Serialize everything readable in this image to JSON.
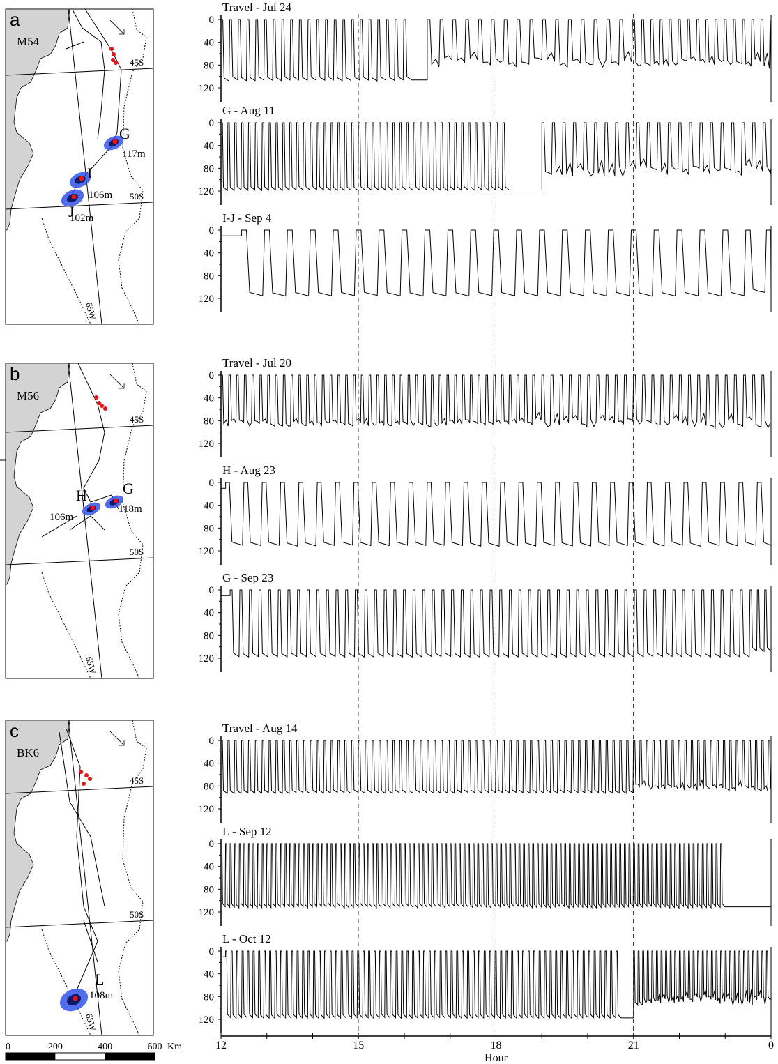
{
  "panels": [
    {
      "letter": "a",
      "animal": "M54",
      "lat_labels": [
        "45S",
        "50S"
      ],
      "lon_label": "65W",
      "sites": [
        {
          "name": "G",
          "depth": "117m"
        },
        {
          "name": "I",
          "depth": "106m"
        },
        {
          "name": "J",
          "depth": "102m"
        }
      ]
    },
    {
      "letter": "b",
      "animal": "M56",
      "lat_labels": [
        "45S",
        "50S"
      ],
      "lon_label": "65W",
      "sites": [
        {
          "name": "H",
          "depth": "106m"
        },
        {
          "name": "G",
          "depth": "118m"
        }
      ]
    },
    {
      "letter": "c",
      "animal": "BK6",
      "lat_labels": [
        "45S",
        "50S"
      ],
      "lon_label": "65W",
      "sites": [
        {
          "name": "L",
          "depth": "108m"
        }
      ]
    }
  ],
  "scale_bar": {
    "ticks": [
      "0",
      "200",
      "400",
      "600"
    ],
    "unit": "Km"
  },
  "chart_data": {
    "type": "line",
    "description_free": true,
    "x_axis": {
      "label": "Hour",
      "ticks": [
        "12",
        "15",
        "18",
        "21",
        "0"
      ],
      "range": [
        12,
        24
      ]
    },
    "y_axis": {
      "ticks": [
        "0",
        "40",
        "80",
        "120"
      ],
      "range": [
        0,
        130
      ],
      "inverted": true
    },
    "reference_lines_hours": [
      15,
      18,
      21
    ],
    "series": [
      {
        "name": "Travel - Jul 24",
        "panel": "a",
        "dives": [
          {
            "from": 12.0,
            "n": 22,
            "dur": 0.19,
            "depth": 108,
            "var": 0.02
          },
          {
            "from": 16.5,
            "n": 16,
            "dur": 0.28,
            "depth": 85,
            "var": 0.18
          },
          {
            "from": 18.0,
            "n": 30,
            "dur": 0.2,
            "depth": 88,
            "var": 0.2
          }
        ]
      },
      {
        "name": "G - Aug 11",
        "panel": "a",
        "dives": [
          {
            "from": 12.0,
            "n": 42,
            "dur": 0.15,
            "depth": 119,
            "var": 0.01
          },
          {
            "from": 19.0,
            "n": 22,
            "dur": 0.23,
            "depth": 95,
            "var": 0.17
          }
        ]
      },
      {
        "name": "I-J - Sep 4",
        "panel": "a",
        "dives": [
          {
            "from": 12.45,
            "n": 22,
            "dur": 0.5,
            "depth": 116,
            "var": 0.01
          },
          {
            "from": 22.0,
            "n": 4,
            "dur": 0.45,
            "depth": 112,
            "var": 0.08
          }
        ]
      },
      {
        "name": "Travel - Jul 20",
        "panel": "b",
        "dives": [
          {
            "from": 12.0,
            "n": 40,
            "dur": 0.17,
            "depth": 90,
            "var": 0.08
          },
          {
            "from": 18.5,
            "n": 30,
            "dur": 0.2,
            "depth": 93,
            "var": 0.15
          }
        ]
      },
      {
        "name": "H - Aug 23",
        "panel": "b",
        "dives": [
          {
            "from": 12.1,
            "n": 30,
            "dur": 0.4,
            "depth": 112,
            "var": 0.02
          },
          {
            "from": 18.5,
            "n": 26,
            "dur": 0.22,
            "depth": 114,
            "var": 0.01
          }
        ]
      },
      {
        "name": "G - Sep 23",
        "panel": "b",
        "dives": [
          {
            "from": 12.2,
            "n": 54,
            "dur": 0.21,
            "depth": 118,
            "var": 0.01
          },
          {
            "from": 23.0,
            "n": 6,
            "dur": 0.16,
            "depth": 110,
            "var": 0.05
          }
        ]
      },
      {
        "name": "Travel - Aug 14",
        "panel": "c",
        "dives": [
          {
            "from": 12.0,
            "n": 60,
            "dur": 0.15,
            "depth": 93,
            "var": 0.02
          },
          {
            "from": 19.6,
            "n": 30,
            "dur": 0.14,
            "depth": 90,
            "var": 0.12
          }
        ]
      },
      {
        "name": "L - Sep 12",
        "panel": "c",
        "dives": [
          {
            "from": 12.0,
            "n": 110,
            "dur": 0.1,
            "depth": 113,
            "var": 0.03
          }
        ]
      },
      {
        "name": "L - Oct 12",
        "panel": "c",
        "dives": [
          {
            "from": 12.1,
            "n": 72,
            "dur": 0.12,
            "depth": 118,
            "var": 0.01
          },
          {
            "from": 21.0,
            "n": 30,
            "dur": 0.1,
            "depth": 95,
            "var": 0.15
          }
        ]
      }
    ]
  },
  "style": {
    "land_color": "#d3d3d3",
    "blob_outer": "#3355ee",
    "blob_inner": "#0a1a66",
    "point_color": "#ee1111",
    "line_color": "#000000"
  }
}
